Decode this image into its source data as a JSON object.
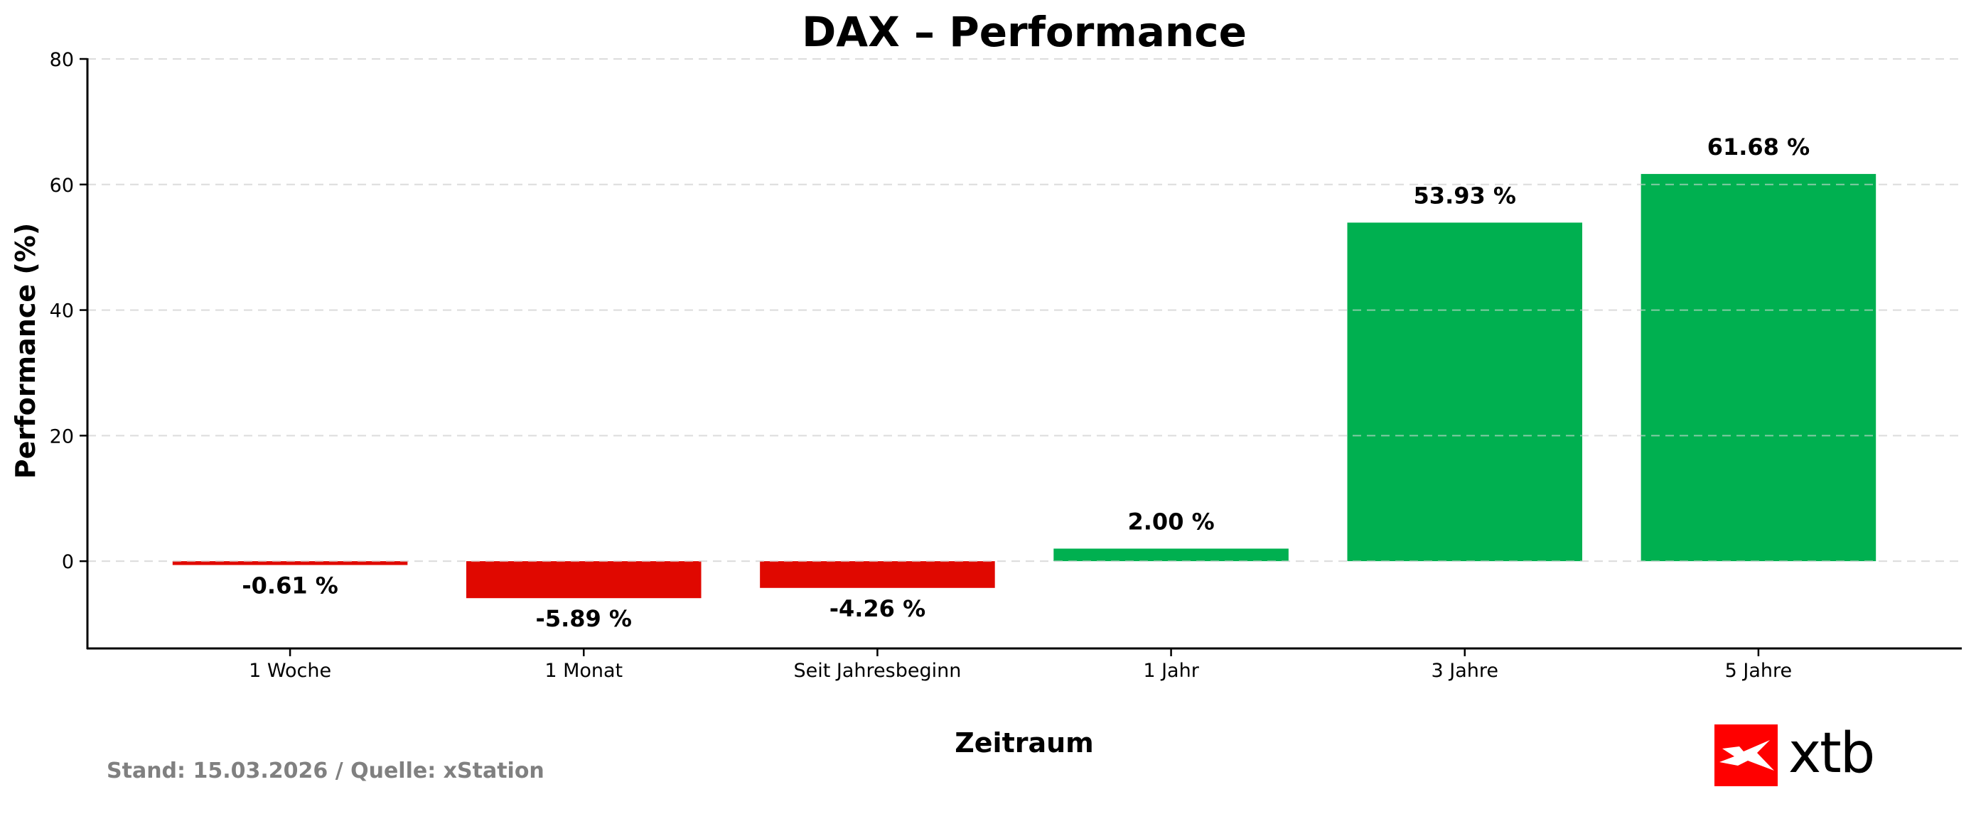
{
  "chart_data": {
    "type": "bar",
    "title": "DAX – Performance",
    "xlabel": "Zeitraum",
    "ylabel": "Performance (%)",
    "categories": [
      "1 Woche",
      "1 Monat",
      "Seit Jahresbeginn",
      "1 Jahr",
      "3 Jahre",
      "5 Jahre"
    ],
    "values": [
      -0.61,
      -5.89,
      -4.26,
      2.0,
      53.93,
      61.68
    ],
    "value_labels": [
      "-0.61 %",
      "-5.89 %",
      "-4.26 %",
      "2.00 %",
      "53.93 %",
      "61.68 %"
    ],
    "ylim": [
      -13.9,
      80
    ],
    "yticks": [
      0,
      20,
      40,
      60,
      80
    ],
    "grid": true,
    "grid_axis": "y",
    "legend": null,
    "colors": {
      "positive": "#00B050",
      "negative": "#E00800"
    }
  },
  "footer": {
    "source_text": "Stand: 15.03.2026 / Quelle: xStation"
  },
  "logo": {
    "text": "xtb",
    "brand_color": "#FF0000",
    "icon": "xtb-x-icon"
  }
}
